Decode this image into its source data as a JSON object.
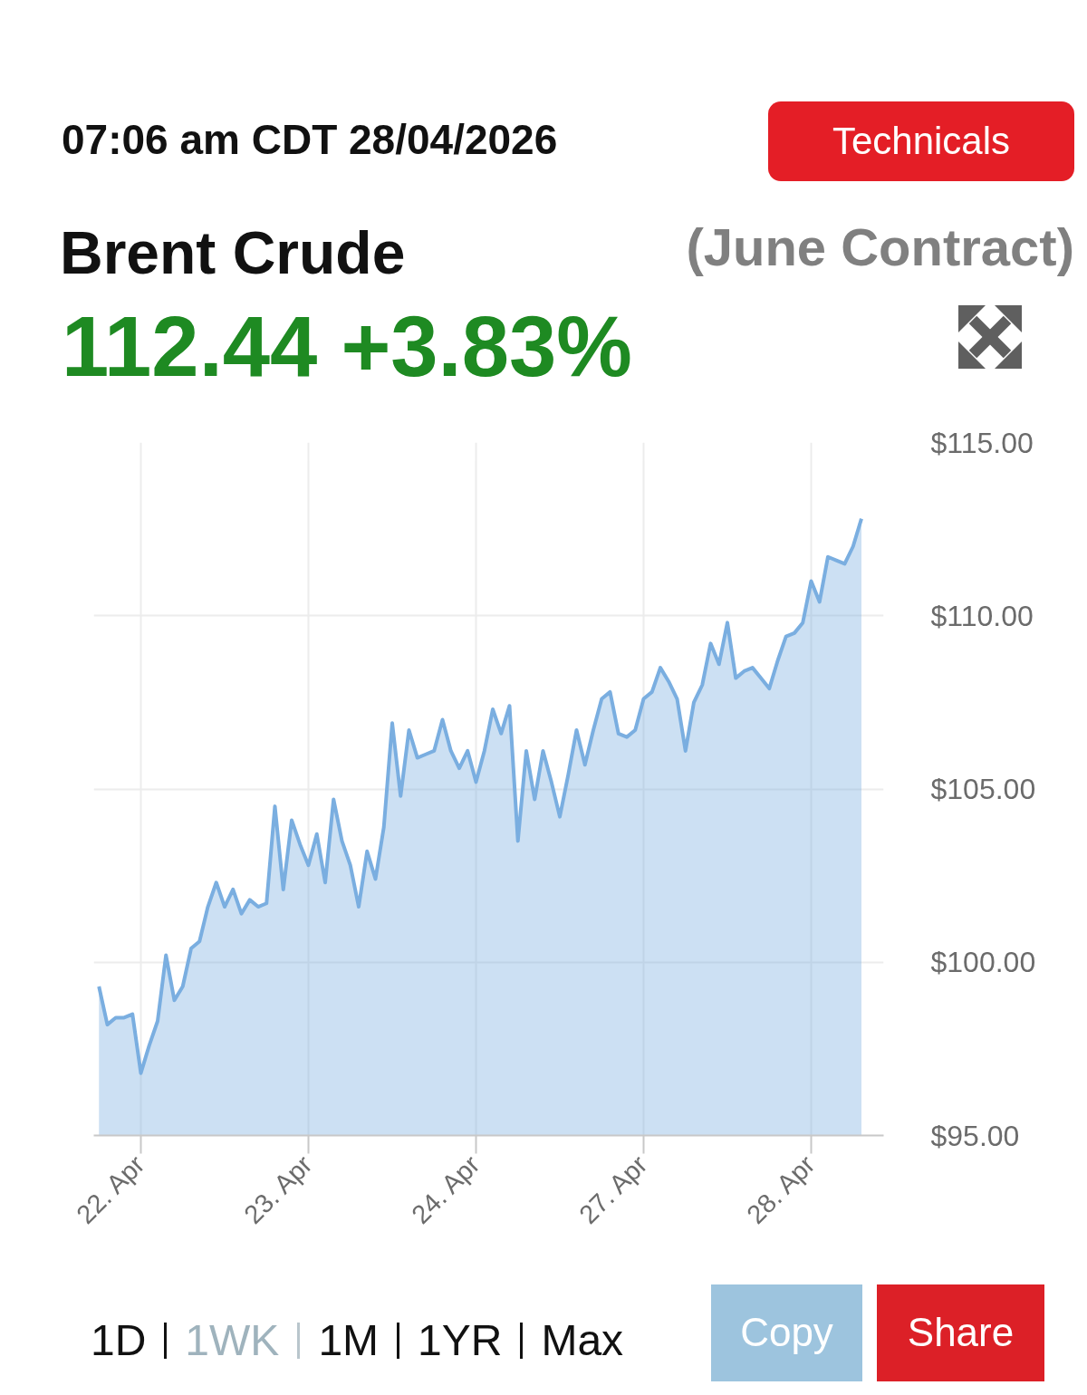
{
  "chart_data": {
    "type": "area",
    "title": "Brent Crude",
    "subtitle": "(June Contract)",
    "annotations": [
      "07:06 am CDT 28/04/2026",
      "112.44 +3.83%",
      "Technicals",
      "1D",
      "1WK",
      "1M",
      "1YR",
      "Max",
      "Copy",
      "Share"
    ],
    "categories": [
      null,
      null,
      null,
      null,
      null,
      "22. Apr",
      null,
      null,
      null,
      null,
      null,
      null,
      null,
      null,
      null,
      null,
      null,
      null,
      null,
      null,
      null,
      null,
      null,
      null,
      null,
      "23. Apr",
      null,
      null,
      null,
      null,
      null,
      null,
      null,
      null,
      null,
      null,
      null,
      null,
      null,
      null,
      null,
      null,
      null,
      null,
      null,
      "24. Apr",
      null,
      null,
      null,
      null,
      null,
      null,
      null,
      null,
      null,
      null,
      null,
      null,
      null,
      null,
      null,
      null,
      null,
      null,
      null,
      "27. Apr",
      null,
      null,
      null,
      null,
      null,
      null,
      null,
      null,
      null,
      null,
      null,
      null,
      null,
      null,
      null,
      null,
      null,
      null,
      null,
      "28. Apr",
      null,
      null,
      null,
      null,
      null,
      null
    ],
    "series": [
      {
        "color": "#7aaee0",
        "values": [
          99.3,
          98.2,
          98.4,
          98.4,
          98.5,
          96.8,
          97.6,
          98.3,
          100.2,
          98.9,
          99.3,
          100.4,
          100.6,
          101.6,
          102.3,
          101.6,
          102.1,
          101.4,
          101.8,
          101.6,
          101.7,
          104.5,
          102.1,
          104.1,
          103.4,
          102.8,
          103.7,
          102.3,
          104.7,
          103.5,
          102.8,
          101.6,
          103.2,
          102.4,
          103.9,
          106.9,
          104.8,
          106.7,
          105.9,
          106.0,
          106.1,
          107.0,
          106.1,
          105.6,
          106.1,
          105.2,
          106.1,
          107.3,
          106.6,
          107.4,
          103.5,
          106.1,
          104.7,
          106.1,
          105.2,
          104.2,
          105.4,
          106.7,
          105.7,
          106.7,
          107.6,
          107.8,
          106.6,
          106.5,
          106.7,
          107.6,
          107.8,
          108.5,
          108.1,
          107.6,
          106.1,
          107.5,
          108.0,
          109.2,
          108.6,
          109.8,
          108.2,
          108.4,
          108.5,
          108.2,
          107.9,
          108.7,
          109.4,
          109.5,
          109.8,
          111.0,
          110.4,
          111.7,
          111.6,
          111.5,
          112.0,
          112.8
        ]
      }
    ],
    "ylim": [
      95,
      115
    ],
    "yticks": [
      {
        "value": 95,
        "label": "$95.00"
      },
      {
        "value": 100,
        "label": "$100.00"
      },
      {
        "value": 105,
        "label": "$105.00"
      },
      {
        "value": 110,
        "label": "$110.00"
      },
      {
        "value": 115,
        "label": "$115.00"
      }
    ],
    "grid": true
  }
}
